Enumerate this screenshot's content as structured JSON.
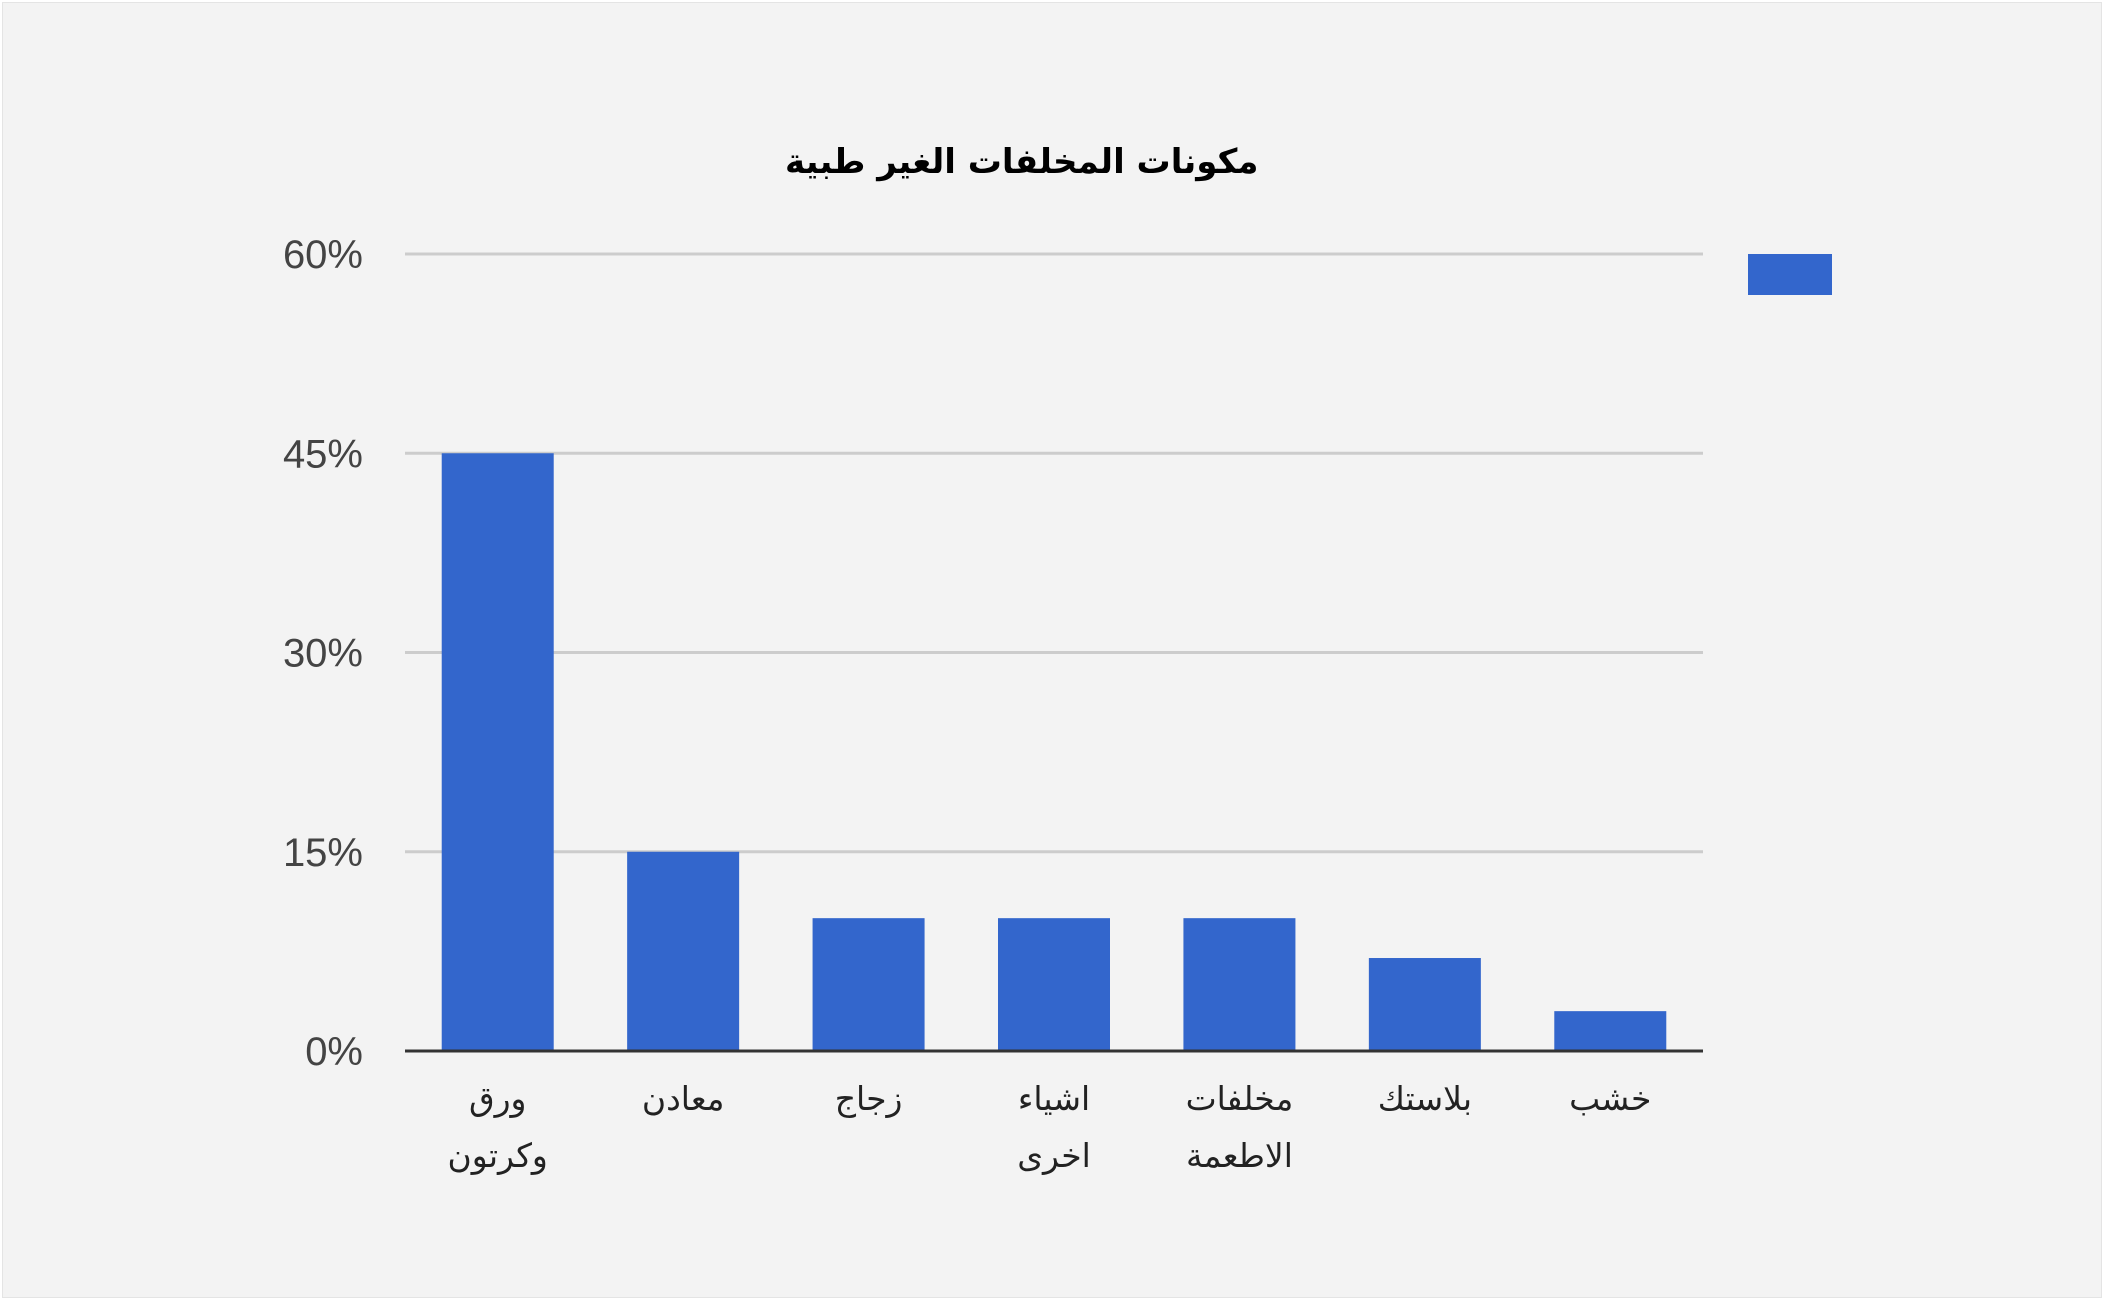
{
  "colors": {
    "bar": "#3366cc",
    "background": "#f3f3f3",
    "grid": "#cccccc",
    "axis": "#333333"
  },
  "chart_data": {
    "type": "bar",
    "title": "مكونات المخلفات الغير طبية",
    "xlabel": "",
    "ylabel": "",
    "categories": [
      [
        "ورق",
        "وكرتون"
      ],
      [
        "معادن"
      ],
      [
        "زجاج"
      ],
      [
        "اشياء",
        "اخرى"
      ],
      [
        "مخلفات",
        "الاطعمة"
      ],
      [
        "بلاستك"
      ],
      [
        "خشب"
      ]
    ],
    "values": [
      45,
      15,
      10,
      10,
      10,
      7,
      3
    ],
    "ylim": [
      0,
      60
    ],
    "yticks": [
      0,
      15,
      30,
      45,
      60
    ],
    "ytick_labels": [
      "0%",
      "15%",
      "30%",
      "45%",
      "60%"
    ],
    "grid": true,
    "legend": {
      "position": "right",
      "entries": [
        ""
      ]
    }
  }
}
